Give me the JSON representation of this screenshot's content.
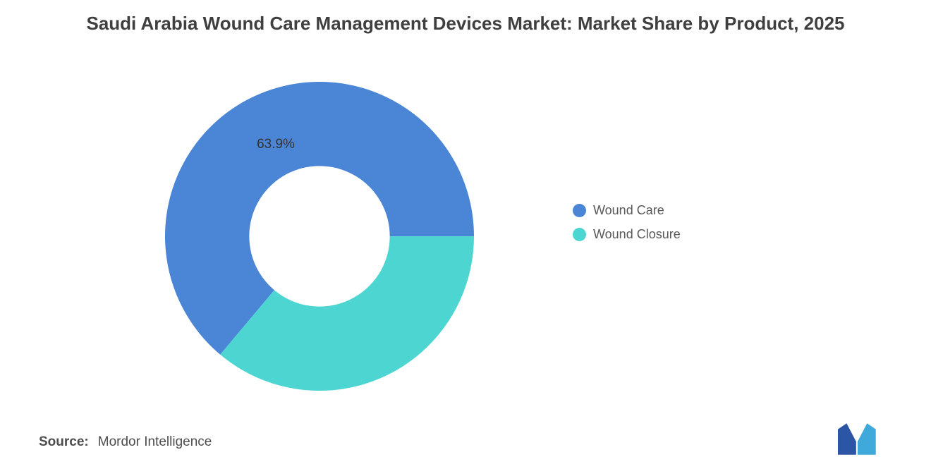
{
  "chart_data": {
    "type": "pie",
    "donut": true,
    "title": "Saudi Arabia Wound Care Management Devices Market: Market Share by Product, 2025",
    "series": [
      {
        "name": "Wound Care",
        "value": 63.9,
        "color": "#4A85D6"
      },
      {
        "name": "Wound Closure",
        "value": 36.1,
        "color": "#4DD5D2"
      }
    ],
    "slice_label": "63.9%",
    "start_angle_deg": 220,
    "inner_radius_ratio": 0.455,
    "legend_position": "right"
  },
  "source": {
    "prefix": "Source:",
    "text": "Mordor Intelligence"
  },
  "logo": {
    "name": "mordor-intelligence-logo",
    "left_color": "#2C55A5",
    "right_color": "#3FA9DC"
  }
}
